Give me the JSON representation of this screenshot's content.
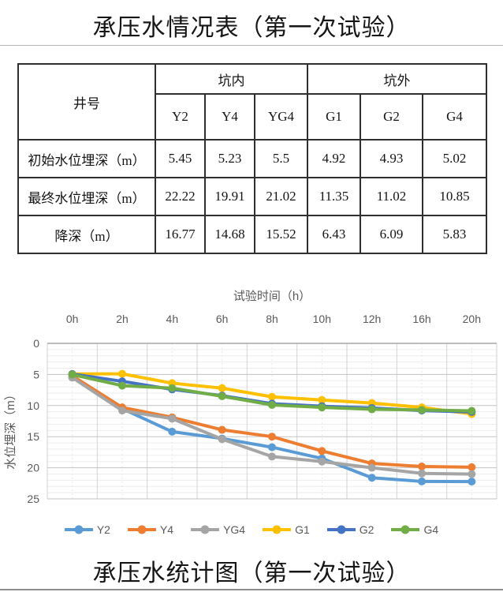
{
  "page": {
    "top_title": "承压水情况表（第一次试验）",
    "bottom_title": "承压水统计图（第一次试验）"
  },
  "table": {
    "corner_header": "井号",
    "group_headers": [
      "坑内",
      "坑外"
    ],
    "well_headers": [
      "Y2",
      "Y4",
      "YG4",
      "G1",
      "G2",
      "G4"
    ],
    "rows": [
      {
        "label": "初始水位埋深（m）",
        "values": [
          "5.45",
          "5.23",
          "5.5",
          "4.92",
          "4.93",
          "5.02"
        ]
      },
      {
        "label": "最终水位埋深（m）",
        "values": [
          "22.22",
          "19.91",
          "21.02",
          "11.35",
          "11.02",
          "10.85"
        ]
      },
      {
        "label": "降深（m）",
        "values": [
          "16.77",
          "14.68",
          "15.52",
          "6.43",
          "6.09",
          "5.83"
        ]
      }
    ]
  },
  "chart_data": {
    "type": "line",
    "xlabel": "试验时间（h）",
    "ylabel": "水位埋深（m）",
    "categories": [
      "0h",
      "2h",
      "4h",
      "6h",
      "8h",
      "10h",
      "12h",
      "16h",
      "20h"
    ],
    "ylim": [
      0,
      25
    ],
    "y_ticks": [
      0,
      5,
      10,
      15,
      20,
      25
    ],
    "y_inverted": true,
    "grid": true,
    "legend_position": "bottom",
    "axis_text_color": "#595959",
    "series": [
      {
        "name": "Y2",
        "color": "#5B9BD5",
        "values": [
          5.45,
          10.5,
          14.2,
          15.3,
          16.7,
          18.5,
          21.6,
          22.2,
          22.22
        ]
      },
      {
        "name": "Y4",
        "color": "#ED7D31",
        "values": [
          5.23,
          10.3,
          11.9,
          13.9,
          15.0,
          17.3,
          19.3,
          19.8,
          19.91
        ]
      },
      {
        "name": "YG4",
        "color": "#A5A5A5",
        "values": [
          5.5,
          10.8,
          12.1,
          15.4,
          18.2,
          19.0,
          20.0,
          20.9,
          21.02
        ]
      },
      {
        "name": "G1",
        "color": "#FFC000",
        "values": [
          4.92,
          4.9,
          6.4,
          7.2,
          8.6,
          9.1,
          9.6,
          10.3,
          11.35
        ]
      },
      {
        "name": "G2",
        "color": "#4472C4",
        "values": [
          4.93,
          6.1,
          7.4,
          8.4,
          9.7,
          10.1,
          10.4,
          10.8,
          11.02
        ]
      },
      {
        "name": "G4",
        "color": "#70AD47",
        "values": [
          5.02,
          6.8,
          7.2,
          8.5,
          9.9,
          10.3,
          10.6,
          10.7,
          10.85
        ]
      }
    ]
  }
}
